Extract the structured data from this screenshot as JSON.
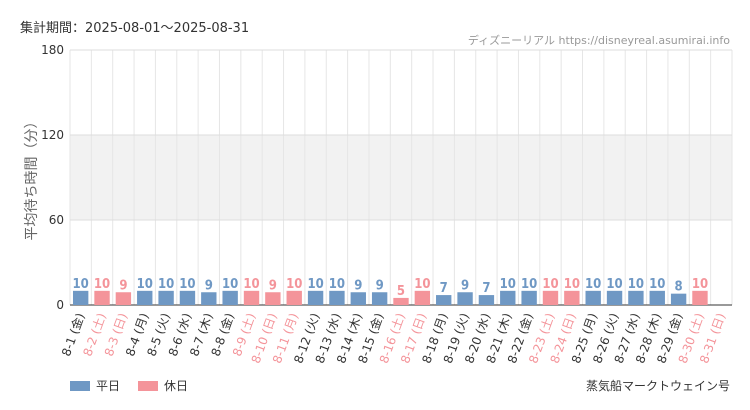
{
  "header": {
    "period_label": "集計期間：2025-08-01〜2025-08-31",
    "source": "ディズニーリアル https://disneyreal.asumirai.info"
  },
  "footer": {
    "attraction": "蒸気船マークトウェイン号"
  },
  "colors": {
    "weekday": "#6f98c4",
    "holiday": "#f4949a",
    "band": "#f2f2f2",
    "grid": "#e6e6e6"
  },
  "chart_data": {
    "type": "bar",
    "title": "",
    "xlabel": "",
    "ylabel": "平均待ち時間（分）",
    "ylim": [
      0,
      180
    ],
    "yticks": [
      0,
      60,
      120,
      180
    ],
    "categories": [
      "8-1 (金)",
      "8-2 (土)",
      "8-3 (日)",
      "8-4 (月)",
      "8-5 (火)",
      "8-6 (水)",
      "8-7 (木)",
      "8-8 (金)",
      "8-9 (土)",
      "8-10 (日)",
      "8-11 (月)",
      "8-12 (火)",
      "8-13 (水)",
      "8-14 (木)",
      "8-15 (金)",
      "8-16 (土)",
      "8-17 (日)",
      "8-18 (月)",
      "8-19 (火)",
      "8-20 (水)",
      "8-21 (木)",
      "8-22 (金)",
      "8-23 (土)",
      "8-24 (日)",
      "8-25 (月)",
      "8-26 (火)",
      "8-27 (水)",
      "8-28 (木)",
      "8-29 (金)",
      "8-30 (土)",
      "8-31 (日)"
    ],
    "values": [
      10,
      10,
      9,
      10,
      10,
      10,
      9,
      10,
      10,
      9,
      10,
      10,
      10,
      9,
      9,
      5,
      10,
      7,
      9,
      7,
      10,
      10,
      10,
      10,
      10,
      10,
      10,
      10,
      8,
      10,
      null
    ],
    "day_type": [
      "weekday",
      "holiday",
      "holiday",
      "weekday",
      "weekday",
      "weekday",
      "weekday",
      "weekday",
      "holiday",
      "holiday",
      "holiday",
      "weekday",
      "weekday",
      "weekday",
      "weekday",
      "holiday",
      "holiday",
      "weekday",
      "weekday",
      "weekday",
      "weekday",
      "weekday",
      "holiday",
      "holiday",
      "weekday",
      "weekday",
      "weekday",
      "weekday",
      "weekday",
      "holiday",
      "holiday"
    ],
    "legend": [
      {
        "key": "weekday",
        "label": "平日"
      },
      {
        "key": "holiday",
        "label": "休日"
      }
    ],
    "legend_position": "bottom-left",
    "grid": true
  }
}
